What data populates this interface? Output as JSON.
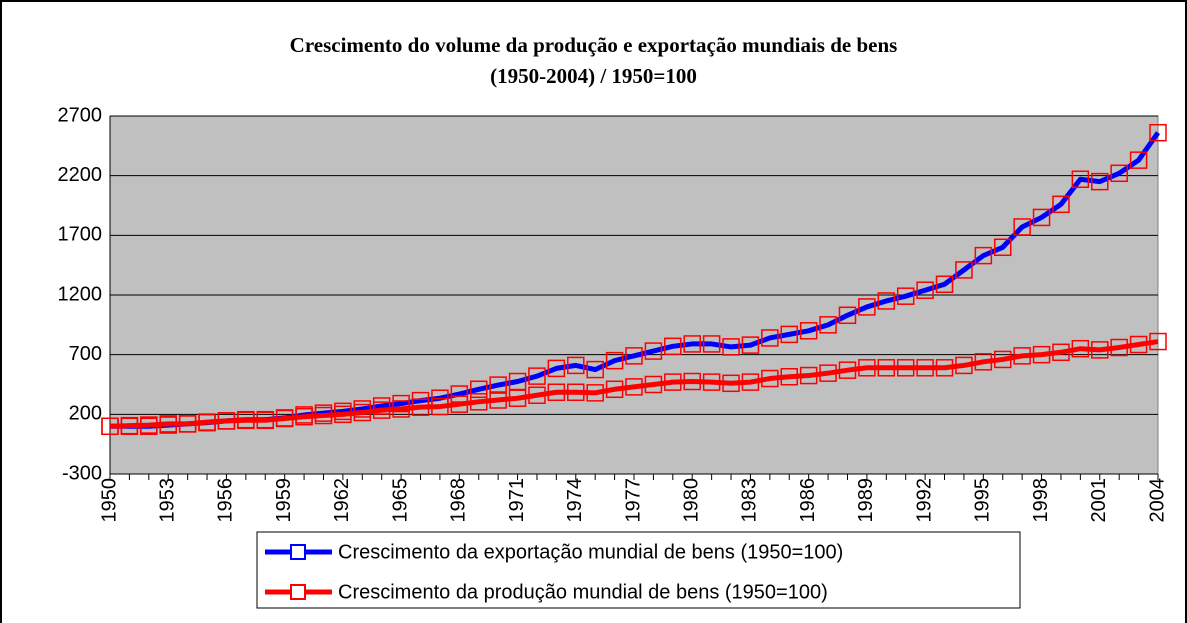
{
  "chart_data": {
    "type": "line",
    "title": "Crescimento do volume da produção e exportação mundiais de bens\n(1950-2004) / 1950=100",
    "categories": [
      "1950",
      null,
      null,
      "1953",
      null,
      null,
      "1956",
      null,
      null,
      "1959",
      null,
      null,
      "1962",
      null,
      null,
      "1965",
      null,
      null,
      "1968",
      null,
      null,
      "1971",
      null,
      null,
      "1974",
      null,
      null,
      "1977",
      null,
      null,
      "1980",
      null,
      null,
      "1983",
      null,
      null,
      "1986",
      null,
      null,
      "1989",
      null,
      null,
      "1992",
      null,
      null,
      "1995",
      null,
      null,
      "1998",
      null,
      null,
      "2001",
      null,
      null,
      "2004"
    ],
    "series": [
      {
        "name": "Crescimento da exportação mundial de bens (1950=100)",
        "color": "#0000ff",
        "marker_color": "#ff0000",
        "values": [
          100,
          100,
          100,
          110,
          120,
          130,
          145,
          155,
          155,
          170,
          195,
          210,
          225,
          245,
          270,
          290,
          315,
          335,
          370,
          410,
          445,
          475,
          520,
          585,
          610,
          575,
          650,
          690,
          730,
          770,
          790,
          790,
          765,
          780,
          840,
          870,
          900,
          950,
          1030,
          1100,
          1150,
          1190,
          1240,
          1290,
          1410,
          1530,
          1600,
          1770,
          1850,
          1960,
          2170,
          2150,
          2220,
          2330,
          2560
        ]
      },
      {
        "name": "Crescimento da produção mundial de bens (1950=100)",
        "color": "#ff0000",
        "marker_color": "#ff0000",
        "values": [
          100,
          105,
          110,
          120,
          120,
          135,
          145,
          150,
          150,
          165,
          180,
          190,
          200,
          215,
          235,
          245,
          260,
          265,
          285,
          305,
          320,
          335,
          360,
          385,
          385,
          380,
          410,
          430,
          450,
          470,
          475,
          470,
          460,
          470,
          500,
          515,
          525,
          545,
          570,
          590,
          590,
          590,
          590,
          590,
          610,
          640,
          660,
          690,
          700,
          720,
          750,
          740,
          760,
          785,
          810
        ]
      }
    ],
    "ylim": [
      -300,
      2700
    ],
    "yticks": [
      -300,
      200,
      700,
      1200,
      1700,
      2200,
      2700
    ],
    "grid": true,
    "plot_background": "#c0c0c0",
    "legend": "bottom"
  }
}
